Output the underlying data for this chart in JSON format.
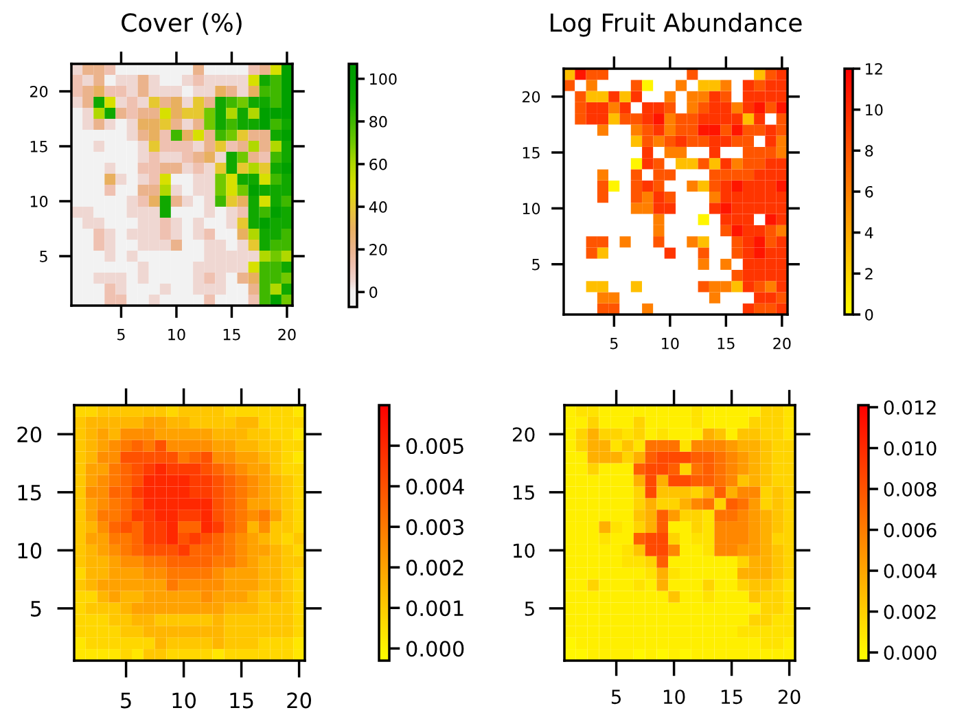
{
  "chart_data": [
    {
      "type": "heatmap",
      "title": "Cover (%)",
      "categories": [
        null,
        null,
        null,
        null,
        "5",
        null,
        null,
        null,
        null,
        "10",
        null,
        null,
        null,
        null,
        "15",
        null,
        null,
        null,
        null,
        "20"
      ],
      "y_categories": [
        null,
        null,
        "20",
        null,
        null,
        null,
        null,
        "15",
        null,
        null,
        null,
        null,
        "10",
        null,
        null,
        null,
        null,
        "5",
        null,
        null,
        null,
        null
      ],
      "clim": [
        -7,
        107
      ],
      "cticks": [
        0,
        20,
        40,
        60,
        80,
        100
      ],
      "cells": [
        [
          5,
          20,
          20,
          12,
          0,
          0,
          0,
          0,
          0,
          0,
          0,
          20,
          0,
          0,
          0,
          0,
          12,
          20,
          50,
          100
        ],
        [
          12,
          5,
          20,
          0,
          5,
          5,
          20,
          5,
          0,
          0,
          5,
          12,
          5,
          5,
          5,
          5,
          50,
          90,
          80,
          100
        ],
        [
          12,
          20,
          30,
          12,
          12,
          5,
          20,
          5,
          5,
          5,
          0,
          5,
          5,
          30,
          20,
          5,
          30,
          80,
          80,
          100
        ],
        [
          5,
          20,
          90,
          50,
          5,
          12,
          5,
          40,
          20,
          30,
          5,
          40,
          20,
          90,
          80,
          70,
          90,
          90,
          80,
          100
        ],
        [
          0,
          5,
          60,
          90,
          20,
          12,
          20,
          20,
          50,
          30,
          40,
          40,
          70,
          90,
          60,
          90,
          60,
          100,
          100,
          100
        ],
        [
          0,
          5,
          20,
          5,
          0,
          5,
          30,
          30,
          40,
          20,
          5,
          20,
          70,
          90,
          80,
          90,
          90,
          100,
          80,
          90
        ],
        [
          0,
          0,
          0,
          0,
          0,
          5,
          20,
          30,
          12,
          80,
          30,
          50,
          20,
          80,
          70,
          40,
          20,
          20,
          90,
          100
        ],
        [
          0,
          0,
          5,
          0,
          0,
          0,
          5,
          40,
          12,
          12,
          12,
          5,
          20,
          40,
          12,
          20,
          60,
          20,
          60,
          90
        ],
        [
          0,
          0,
          0,
          0,
          0,
          0,
          5,
          12,
          5,
          5,
          12,
          20,
          30,
          5,
          90,
          70,
          20,
          12,
          80,
          90
        ],
        [
          0,
          0,
          0,
          5,
          0,
          0,
          12,
          12,
          20,
          20,
          5,
          12,
          5,
          40,
          90,
          40,
          60,
          40,
          90,
          100
        ],
        [
          0,
          0,
          0,
          30,
          5,
          0,
          5,
          12,
          50,
          0,
          0,
          5,
          5,
          70,
          50,
          90,
          90,
          50,
          80,
          90
        ],
        [
          0,
          0,
          0,
          12,
          0,
          0,
          20,
          20,
          60,
          5,
          0,
          5,
          5,
          70,
          50,
          70,
          100,
          90,
          90,
          90
        ],
        [
          0,
          0,
          0,
          0,
          0,
          5,
          12,
          30,
          90,
          20,
          5,
          0,
          5,
          80,
          40,
          30,
          90,
          50,
          90,
          80
        ],
        [
          5,
          5,
          0,
          0,
          0,
          5,
          5,
          5,
          90,
          0,
          0,
          0,
          5,
          0,
          5,
          12,
          90,
          80,
          100,
          90
        ],
        [
          0,
          5,
          5,
          0,
          0,
          0,
          5,
          5,
          12,
          5,
          0,
          5,
          0,
          0,
          5,
          40,
          90,
          100,
          90,
          90
        ],
        [
          0,
          0,
          12,
          5,
          0,
          5,
          5,
          5,
          12,
          5,
          0,
          5,
          12,
          0,
          0,
          30,
          60,
          90,
          90,
          80
        ],
        [
          0,
          0,
          12,
          5,
          0,
          0,
          5,
          5,
          5,
          20,
          0,
          0,
          5,
          5,
          0,
          5,
          40,
          90,
          80,
          80
        ],
        [
          0,
          0,
          0,
          5,
          0,
          5,
          0,
          0,
          0,
          0,
          0,
          0,
          5,
          5,
          5,
          5,
          5,
          60,
          70,
          60
        ],
        [
          0,
          0,
          0,
          0,
          0,
          0,
          5,
          0,
          0,
          0,
          0,
          5,
          5,
          5,
          5,
          5,
          50,
          80,
          80,
          90
        ],
        [
          0,
          0,
          5,
          5,
          5,
          0,
          5,
          0,
          0,
          0,
          0,
          5,
          12,
          5,
          0,
          20,
          30,
          80,
          80,
          70
        ],
        [
          0,
          0,
          0,
          12,
          5,
          0,
          0,
          0,
          5,
          0,
          0,
          5,
          5,
          5,
          0,
          0,
          20,
          80,
          60,
          90
        ],
        [
          0,
          0,
          0,
          12,
          12,
          0,
          0,
          5,
          0,
          0,
          0,
          0,
          12,
          0,
          0,
          0,
          12,
          80,
          100,
          70
        ]
      ]
    },
    {
      "type": "heatmap",
      "title": "Log Fruit Abundance",
      "categories": [
        null,
        null,
        null,
        null,
        "5",
        null,
        null,
        null,
        null,
        "10",
        null,
        null,
        null,
        null,
        "15",
        null,
        null,
        null,
        null,
        "20"
      ],
      "y_categories": [
        null,
        null,
        "20",
        null,
        null,
        null,
        null,
        "15",
        null,
        null,
        null,
        null,
        "10",
        null,
        null,
        null,
        null,
        "5",
        null,
        null,
        null,
        null
      ],
      "clim": [
        0,
        12
      ],
      "cticks": [
        0,
        2,
        4,
        6,
        8,
        10,
        12
      ],
      "cells": [
        [
          3,
          11,
          8,
          8,
          null,
          null,
          null,
          null,
          null,
          null,
          null,
          8,
          null,
          null,
          null,
          null,
          null,
          3,
          8,
          9.5
        ],
        [
          8,
          null,
          6,
          null,
          null,
          null,
          8,
          0.5,
          null,
          null,
          6,
          null,
          3,
          3,
          6,
          null,
          9.5,
          8,
          9.5,
          9.5
        ],
        [
          null,
          8,
          3,
          3,
          9.5,
          3,
          9.5,
          null,
          null,
          6,
          null,
          6,
          6,
          9.5,
          8,
          null,
          9.5,
          9.5,
          9.5,
          9.5
        ],
        [
          null,
          8,
          9.5,
          9.5,
          6,
          9.5,
          null,
          9.5,
          9.5,
          8,
          null,
          6,
          8,
          9.5,
          9.5,
          6,
          9.5,
          11,
          8,
          11
        ],
        [
          null,
          8,
          9.5,
          9.5,
          3,
          8,
          8,
          9.5,
          11,
          6,
          8,
          8,
          9.5,
          9.5,
          9.5,
          9.5,
          3,
          9.5,
          null,
          8
        ],
        [
          null,
          null,
          null,
          6,
          null,
          null,
          6,
          8,
          9.5,
          6,
          8,
          8,
          11,
          11,
          8,
          11,
          8,
          8,
          9.5,
          8
        ],
        [
          null,
          null,
          null,
          null,
          null,
          null,
          3,
          8,
          6,
          8,
          9.5,
          8,
          8,
          9.5,
          9.5,
          8,
          8,
          null,
          9.5,
          6
        ],
        [
          null,
          null,
          null,
          null,
          null,
          null,
          null,
          9.5,
          null,
          6,
          6,
          null,
          null,
          9.5,
          null,
          null,
          8,
          8,
          8,
          6
        ],
        [
          null,
          null,
          null,
          null,
          null,
          null,
          0.5,
          9.5,
          8,
          null,
          3,
          3,
          8,
          3,
          9.5,
          6,
          8,
          8,
          9.5,
          9.5
        ],
        [
          null,
          null,
          null,
          6,
          null,
          null,
          8,
          null,
          8,
          8,
          null,
          null,
          null,
          8,
          8,
          8,
          8,
          9.5,
          9.5,
          9.5
        ],
        [
          null,
          null,
          null,
          8,
          0.5,
          null,
          8,
          9.5,
          8,
          null,
          null,
          6,
          3,
          8,
          9.5,
          11,
          9.5,
          9.5,
          9.5,
          11
        ],
        [
          null,
          null,
          null,
          8,
          null,
          null,
          8,
          6,
          9.5,
          8,
          null,
          null,
          null,
          6,
          9.5,
          9.5,
          9.5,
          9.5,
          9.5,
          9.5
        ],
        [
          null,
          null,
          null,
          null,
          null,
          null,
          6,
          6,
          9.5,
          9.5,
          null,
          null,
          null,
          9.5,
          11,
          9.5,
          9.5,
          9.5,
          9.5,
          9.5
        ],
        [
          null,
          null,
          null,
          null,
          null,
          null,
          null,
          null,
          6,
          null,
          null,
          null,
          0.5,
          null,
          9.5,
          9.5,
          9.5,
          null,
          11,
          9.5
        ],
        [
          null,
          null,
          null,
          null,
          null,
          null,
          null,
          null,
          6,
          null,
          null,
          null,
          null,
          null,
          8,
          11,
          9.5,
          9.5,
          8,
          6
        ],
        [
          null,
          null,
          8,
          8,
          null,
          6,
          null,
          null,
          8,
          null,
          null,
          6,
          3,
          null,
          null,
          8,
          9.5,
          11,
          8,
          9.5
        ],
        [
          null,
          null,
          8,
          3,
          null,
          null,
          null,
          null,
          null,
          9.5,
          null,
          null,
          8,
          null,
          null,
          8,
          9.5,
          11,
          9.5,
          9.5
        ],
        [
          null,
          null,
          null,
          null,
          null,
          null,
          null,
          null,
          null,
          null,
          null,
          null,
          6,
          null,
          6,
          null,
          9.5,
          9.5,
          9.5,
          9.5
        ],
        [
          null,
          null,
          null,
          null,
          null,
          null,
          null,
          null,
          null,
          null,
          null,
          null,
          null,
          null,
          null,
          8,
          9.5,
          9.5,
          9.5,
          9.5
        ],
        [
          null,
          null,
          3,
          3,
          null,
          null,
          3,
          null,
          null,
          null,
          null,
          null,
          8,
          6,
          6,
          3,
          9.5,
          8,
          6,
          9.5
        ],
        [
          null,
          null,
          null,
          6,
          6,
          null,
          null,
          null,
          null,
          null,
          null,
          null,
          null,
          6,
          null,
          null,
          null,
          9.5,
          9.5,
          8
        ],
        [
          null,
          null,
          null,
          8,
          8,
          null,
          null,
          6,
          null,
          null,
          null,
          null,
          null,
          null,
          null,
          null,
          9.5,
          8,
          8,
          9.5
        ]
      ]
    },
    {
      "type": "heatmap",
      "categories": [
        null,
        null,
        null,
        null,
        "5",
        null,
        null,
        null,
        null,
        "10",
        null,
        null,
        null,
        null,
        "15",
        null,
        null,
        null,
        null,
        "20"
      ],
      "y_categories": [
        null,
        null,
        "20",
        null,
        null,
        null,
        null,
        "15",
        null,
        null,
        null,
        null,
        "10",
        null,
        null,
        null,
        null,
        "5",
        null,
        null,
        null,
        null
      ],
      "clim": [
        -0.0003,
        0.006
      ],
      "cticks": [
        {
          "value": 0,
          "label": "0.000"
        },
        {
          "value": 0.001,
          "label": "0.001"
        },
        {
          "value": 0.002,
          "label": "0.002"
        },
        {
          "value": 0.003,
          "label": "0.003"
        },
        {
          "value": 0.004,
          "label": "0.004"
        },
        {
          "value": 0.005,
          "label": "0.005"
        }
      ],
      "cells": [
        [
          0.0007,
          0.0007,
          0.0011,
          0.0011,
          0.0011,
          0.0011,
          0.0011,
          0.0011,
          0.0007,
          0.0011,
          0.0011,
          0.0011,
          0.0011,
          0.0007,
          0.0007,
          0.0007,
          0.0007,
          0.0007,
          0.0007,
          0.0003
        ],
        [
          0.0011,
          0.0015,
          0.0015,
          0.0015,
          0.0015,
          0.0015,
          0.002,
          0.002,
          0.0015,
          0.0015,
          0.0011,
          0.0011,
          0.0011,
          0.0011,
          0.0015,
          0.0015,
          0.0007,
          0.0007,
          0.0007,
          0.0007
        ],
        [
          0.0011,
          0.0015,
          0.002,
          0.0015,
          0.0025,
          0.0025,
          0.0025,
          0.002,
          0.002,
          0.002,
          0.002,
          0.002,
          0.0015,
          0.0015,
          0.0015,
          0.0011,
          0.0011,
          0.0007,
          0.0007,
          0.0003
        ],
        [
          0.0011,
          0.0015,
          0.002,
          0.0025,
          0.003,
          0.0035,
          0.003,
          0.004,
          0.0025,
          0.0025,
          0.0025,
          0.0025,
          0.002,
          0.002,
          0.0015,
          0.0015,
          0.0011,
          0.0011,
          0.0007,
          0.0007
        ],
        [
          0.0011,
          0.0015,
          0.0025,
          0.0025,
          0.004,
          0.004,
          0.004,
          0.004,
          0.004,
          0.003,
          0.0035,
          0.004,
          0.0025,
          0.0025,
          0.002,
          0.002,
          0.0015,
          0.0011,
          0.0007,
          0.0003
        ],
        [
          0.0011,
          0.002,
          0.002,
          0.003,
          0.0035,
          0.004,
          0.0045,
          0.005,
          0.0045,
          0.0045,
          0.0045,
          0.004,
          0.0035,
          0.003,
          0.0025,
          0.002,
          0.002,
          0.0011,
          0.0007,
          0.0007
        ],
        [
          0.0011,
          0.002,
          0.0025,
          0.003,
          0.0035,
          0.004,
          0.005,
          0.005,
          0.005,
          0.005,
          0.0045,
          0.0045,
          0.004,
          0.0035,
          0.003,
          0.0025,
          0.002,
          0.0015,
          0.0011,
          0.0007
        ],
        [
          0.0011,
          0.0025,
          0.0025,
          0.0035,
          0.0035,
          0.0045,
          0.005,
          0.005,
          0.005,
          0.005,
          0.0045,
          0.0045,
          0.004,
          0.0035,
          0.003,
          0.0025,
          0.002,
          0.0015,
          0.0011,
          0.0007
        ],
        [
          0.0011,
          0.002,
          0.0025,
          0.003,
          0.0035,
          0.004,
          0.005,
          0.005,
          0.005,
          0.005,
          0.005,
          0.005,
          0.004,
          0.0035,
          0.003,
          0.002,
          0.002,
          0.0015,
          0.0011,
          0.0007
        ],
        [
          0.0011,
          0.002,
          0.003,
          0.003,
          0.0035,
          0.0045,
          0.0045,
          0.005,
          0.005,
          0.0045,
          0.0045,
          0.005,
          0.004,
          0.0035,
          0.003,
          0.0025,
          0.003,
          0.002,
          0.0011,
          0.0007
        ],
        [
          0.0011,
          0.0015,
          0.0025,
          0.0035,
          0.004,
          0.0035,
          0.0045,
          0.0045,
          0.005,
          0.0035,
          0.0035,
          0.005,
          0.0045,
          0.0035,
          0.003,
          0.0015,
          0.0025,
          0.0011,
          0.0011,
          0.0007
        ],
        [
          0.0011,
          0.002,
          0.002,
          0.003,
          0.003,
          0.0035,
          0.0045,
          0.0045,
          0.005,
          0.004,
          0.0045,
          0.004,
          0.0035,
          0.003,
          0.0025,
          0.002,
          0.0015,
          0.0011,
          0.0007,
          0.0011
        ],
        [
          0.0011,
          0.0015,
          0.002,
          0.0025,
          0.003,
          0.0035,
          0.004,
          0.004,
          0.004,
          0.0045,
          0.0035,
          0.0035,
          0.0035,
          0.003,
          0.0025,
          0.002,
          0.002,
          0.0015,
          0.0011,
          0.0007
        ],
        [
          0.0011,
          0.0015,
          0.0015,
          0.002,
          0.0025,
          0.0025,
          0.003,
          0.003,
          0.0035,
          0.0035,
          0.0035,
          0.0035,
          0.003,
          0.003,
          0.0025,
          0.002,
          0.0015,
          0.0015,
          0.0011,
          0.0011
        ],
        [
          0.0007,
          0.0015,
          0.0015,
          0.002,
          0.002,
          0.002,
          0.0025,
          0.0025,
          0.003,
          0.003,
          0.003,
          0.003,
          0.0025,
          0.002,
          0.002,
          0.002,
          0.0015,
          0.0015,
          0.0011,
          0.0007
        ],
        [
          0.0011,
          0.0015,
          0.002,
          0.002,
          0.002,
          0.002,
          0.002,
          0.002,
          0.003,
          0.0025,
          0.0025,
          0.0025,
          0.0025,
          0.002,
          0.002,
          0.002,
          0.0015,
          0.0015,
          0.0011,
          0.0007
        ],
        [
          0.0007,
          0.0007,
          0.0015,
          0.002,
          0.0015,
          0.0015,
          0.002,
          0.002,
          0.002,
          0.002,
          0.002,
          0.0025,
          0.002,
          0.002,
          0.002,
          0.0015,
          0.0011,
          0.0015,
          0.0011,
          0.0007
        ],
        [
          0.0007,
          0.0011,
          0.0011,
          0.0011,
          0.0015,
          0.002,
          0.002,
          0.002,
          0.002,
          0.002,
          0.002,
          0.002,
          0.002,
          0.0015,
          0.0015,
          0.0015,
          0.0011,
          0.0011,
          0.0011,
          0.0007
        ],
        [
          0.0007,
          0.0007,
          0.0007,
          0.0011,
          0.0011,
          0.0015,
          0.0015,
          0.0011,
          0.0011,
          0.0011,
          0.0011,
          0.0011,
          0.0015,
          0.0011,
          0.0011,
          0.0011,
          0.0011,
          0.0011,
          0.0011,
          0.0007
        ],
        [
          0.0007,
          0.0007,
          0.0007,
          0.0007,
          0.0011,
          0.0011,
          0.0015,
          0.0015,
          0.0015,
          0.0015,
          0.0015,
          0.0015,
          0.0015,
          0.0011,
          0.0011,
          0.0011,
          0.0011,
          0.0011,
          0.0011,
          0.0007
        ],
        [
          0.0003,
          0.0007,
          0.0007,
          0.0007,
          0.0007,
          0.0007,
          0.0007,
          0.0015,
          0.0011,
          0.0011,
          0.0011,
          0.0011,
          0.0015,
          0.0011,
          0.0011,
          0.0011,
          0.0007,
          0.0007,
          0.0007,
          0.0003
        ],
        [
          0.0003,
          0.0003,
          0.0003,
          0.0003,
          0.0007,
          0.0003,
          0.0011,
          0.0011,
          0.0007,
          0.0007,
          0.0007,
          0.0007,
          0.0003,
          0.0007,
          0.0007,
          0.0007,
          0.0007,
          0.0007,
          0.0007,
          0.0003
        ]
      ]
    },
    {
      "type": "heatmap",
      "categories": [
        null,
        null,
        null,
        null,
        "5",
        null,
        null,
        null,
        null,
        "10",
        null,
        null,
        null,
        null,
        "15",
        null,
        null,
        null,
        null,
        "20"
      ],
      "y_categories": [
        null,
        null,
        "20",
        null,
        null,
        null,
        null,
        "15",
        null,
        null,
        null,
        null,
        "10",
        null,
        null,
        null,
        null,
        "5",
        null,
        null,
        null,
        null
      ],
      "clim": [
        -0.0004,
        0.0121
      ],
      "cticks": [
        {
          "value": 0,
          "label": "0.000"
        },
        {
          "value": 0.002,
          "label": "0.002"
        },
        {
          "value": 0.004,
          "label": "0.004"
        },
        {
          "value": 0.006,
          "label": "0.006"
        },
        {
          "value": 0.008,
          "label": "0.008"
        },
        {
          "value": 0.01,
          "label": "0.010"
        },
        {
          "value": 0.012,
          "label": "0.012"
        }
      ],
      "cells": [
        [
          0.0004,
          0.001,
          0.001,
          0.0004,
          0.0004,
          0.0004,
          0.0004,
          0.0004,
          0.0004,
          0.0004,
          0.0004,
          0.001,
          0.0004,
          0.0004,
          0.0004,
          0.0004,
          0.0004,
          0.0017,
          0.0017,
          0.001
        ],
        [
          0.0004,
          0.0004,
          0.0017,
          0.0004,
          0.0004,
          0.0004,
          0.0017,
          0.0004,
          0.0004,
          0.0004,
          0.0004,
          0.001,
          0.0004,
          0.0004,
          0.0004,
          0.0004,
          0.0017,
          0.0017,
          0.0017,
          0.001
        ],
        [
          0.0004,
          0.0017,
          0.0035,
          0.0017,
          0.0017,
          0.001,
          0.0017,
          0.0004,
          0.001,
          0.0004,
          0.0004,
          0.0004,
          0.0035,
          0.0025,
          0.0004,
          0.0025,
          0.0025,
          0.0017,
          0.0017,
          0.001
        ],
        [
          0.0004,
          0.0017,
          0.0035,
          0.0035,
          0.001,
          0.0025,
          0.001,
          0.0065,
          0.0065,
          0.0065,
          0.001,
          0.0055,
          0.0055,
          0.0055,
          0.0045,
          0.0035,
          0.0035,
          0.0025,
          0.0017,
          0.0017
        ],
        [
          0.0004,
          0.0004,
          0.0035,
          0.0035,
          0.0035,
          0.0017,
          0.0035,
          0.0075,
          0.0085,
          0.0085,
          0.0085,
          0.0075,
          0.0075,
          0.0065,
          0.0055,
          0.0045,
          0.0035,
          0.0025,
          0.0017,
          0.0017
        ],
        [
          0.0004,
          0.0004,
          0.0017,
          0.0004,
          0.0004,
          0.0004,
          0.0075,
          0.0085,
          0.0085,
          0.0075,
          0.0017,
          0.0065,
          0.0075,
          0.0065,
          0.0055,
          0.0045,
          0.0035,
          0.0025,
          0.0017,
          0.0017
        ],
        [
          0.0004,
          0.0004,
          0.0004,
          0.0004,
          0.0004,
          0.0004,
          0.0035,
          0.0085,
          0.0035,
          0.0085,
          0.0085,
          0.0075,
          0.0075,
          0.0065,
          0.0055,
          0.0025,
          0.0035,
          0.0025,
          0.0017,
          0.0017
        ],
        [
          0.0004,
          0.0004,
          0.0004,
          0.0004,
          0.0004,
          0.0004,
          0.0017,
          0.0085,
          0.0025,
          0.0025,
          0.0025,
          0.0017,
          0.0035,
          0.0075,
          0.0035,
          0.0055,
          0.0055,
          0.0017,
          0.0025,
          0.0017
        ],
        [
          0.0004,
          0.0004,
          0.0004,
          0.0004,
          0.0004,
          0.0004,
          0.0017,
          0.0035,
          0.0017,
          0.0017,
          0.0035,
          0.0055,
          0.0065,
          0.0017,
          0.0075,
          0.0065,
          0.0045,
          0.0017,
          0.0025,
          0.0017
        ],
        [
          0.0004,
          0.0004,
          0.0004,
          0.0004,
          0.0004,
          0.0004,
          0.0025,
          0.0035,
          0.0075,
          0.0045,
          0.0017,
          0.0017,
          0.001,
          0.0065,
          0.0065,
          0.0055,
          0.0045,
          0.0035,
          0.0025,
          0.0017
        ],
        [
          0.0004,
          0.0004,
          0.0004,
          0.0035,
          0.001,
          0.0004,
          0.0017,
          0.0035,
          0.0075,
          0.0004,
          0.0004,
          0.0017,
          0.001,
          0.0055,
          0.0055,
          0.0055,
          0.0045,
          0.0035,
          0.0025,
          0.0017
        ],
        [
          0.0004,
          0.0004,
          0.0004,
          0.001,
          0.0004,
          0.0004,
          0.0075,
          0.0085,
          0.0085,
          0.0017,
          0.0004,
          0.001,
          0.001,
          0.0055,
          0.0055,
          0.0055,
          0.0045,
          0.0035,
          0.0017,
          0.0017
        ],
        [
          0.0004,
          0.0004,
          0.0004,
          0.0004,
          0.0004,
          0.001,
          0.0025,
          0.0085,
          0.0085,
          0.0055,
          0.0004,
          0.0004,
          0.001,
          0.0055,
          0.0055,
          0.0045,
          0.0045,
          0.0035,
          0.0025,
          0.0017
        ],
        [
          0.0004,
          0.0004,
          0.0004,
          0.0004,
          0.0004,
          0.001,
          0.001,
          0.0017,
          0.0075,
          0.0004,
          0.0004,
          0.0004,
          0.0004,
          0.0004,
          0.0004,
          0.0017,
          0.0035,
          0.0035,
          0.0025,
          0.0017
        ],
        [
          0.0004,
          0.0004,
          0.0004,
          0.0004,
          0.0004,
          0.0004,
          0.0004,
          0.001,
          0.0035,
          0.001,
          0.0004,
          0.0004,
          0.0004,
          0.0004,
          0.0004,
          0.0035,
          0.0035,
          0.0035,
          0.0025,
          0.0017
        ],
        [
          0.0004,
          0.0004,
          0.0017,
          0.0004,
          0.0004,
          0.0004,
          0.001,
          0.0004,
          0.0035,
          0.0004,
          0.0004,
          0.0004,
          0.0017,
          0.0004,
          0.0004,
          0.0017,
          0.0025,
          0.0025,
          0.0017,
          0.001
        ],
        [
          0.0004,
          0.0004,
          0.0004,
          0.0004,
          0.0004,
          0.0004,
          0.0004,
          0.0004,
          0.0004,
          0.0025,
          0.0004,
          0.0004,
          0.001,
          0.0004,
          0.0004,
          0.0004,
          0.0025,
          0.0017,
          0.0017,
          0.001
        ],
        [
          0.0004,
          0.0004,
          0.0004,
          0.0004,
          0.0004,
          0.0004,
          0.0004,
          0.0004,
          0.0004,
          0.0004,
          0.0004,
          0.0004,
          0.0004,
          0.0004,
          0.0004,
          0.0004,
          0.0004,
          0.0017,
          0.0017,
          0.001
        ],
        [
          0.0004,
          0.0004,
          0.0004,
          0.0004,
          0.0004,
          0.0004,
          0.0004,
          0.0004,
          0.0004,
          0.0004,
          0.0004,
          0.0004,
          0.0004,
          0.0004,
          0.0004,
          0.0004,
          0.0017,
          0.0017,
          0.001,
          0.001
        ],
        [
          0.0004,
          0.0004,
          0.0004,
          0.0004,
          0.0004,
          0.0004,
          0.0004,
          0.0004,
          0.0004,
          0.0004,
          0.0004,
          0.0004,
          0.0004,
          0.0004,
          0.0004,
          0.001,
          0.001,
          0.001,
          0.001,
          0.001
        ],
        [
          0,
          0.0004,
          0.0004,
          0.0004,
          0.0004,
          0.0004,
          0.0004,
          0.0004,
          0.0004,
          0.0004,
          0.0004,
          0.0004,
          0.0004,
          0.0004,
          0.0004,
          0.0004,
          0.0004,
          0.001,
          0.001,
          0.0004
        ],
        [
          0,
          0,
          0.0004,
          0.0004,
          0.0004,
          0.0004,
          0,
          0.0004,
          0,
          0.0004,
          0,
          0.0004,
          0.0004,
          0.0004,
          0.0004,
          0.0004,
          0.0004,
          0.0004,
          0.0004,
          0.0004
        ]
      ]
    }
  ]
}
